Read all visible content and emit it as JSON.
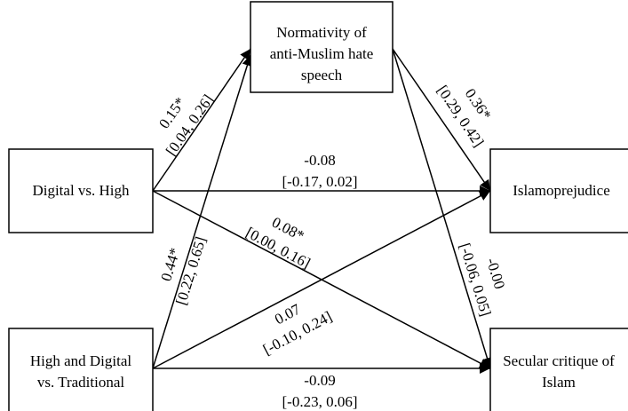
{
  "nodes": [
    {
      "lines": [
        "Normativity of",
        "anti-Muslim hate",
        "speech"
      ]
    },
    {
      "lines": [
        "Digital vs. High"
      ]
    },
    {
      "lines": [
        "High and Digital",
        "vs. Traditional"
      ]
    },
    {
      "lines": [
        "Islamoprejudice"
      ]
    },
    {
      "lines": [
        "Secular critique of",
        "Islam"
      ]
    }
  ],
  "edges": [
    {
      "from": 1,
      "to": 0,
      "estimate": "0.15*",
      "ci": "[0.04, 0.26]"
    },
    {
      "from": 2,
      "to": 0,
      "estimate": "0.44*",
      "ci": "[0.22, 0.65]"
    },
    {
      "from": 0,
      "to": 3,
      "estimate": "0.36*",
      "ci": "[0.29, 0.42]"
    },
    {
      "from": 0,
      "to": 4,
      "estimate": "-0.00",
      "ci": "[-0.06, 0.05]"
    },
    {
      "from": 1,
      "to": 3,
      "estimate": "-0.08",
      "ci": "[-0.17, 0.02]"
    },
    {
      "from": 1,
      "to": 4,
      "estimate": "0.08*",
      "ci": "[0.00, 0.16]"
    },
    {
      "from": 2,
      "to": 3,
      "estimate": "0.07",
      "ci": "[-0.10, 0.24]"
    },
    {
      "from": 2,
      "to": 4,
      "estimate": "-0.09",
      "ci": "[-0.23, 0.06]"
    }
  ]
}
